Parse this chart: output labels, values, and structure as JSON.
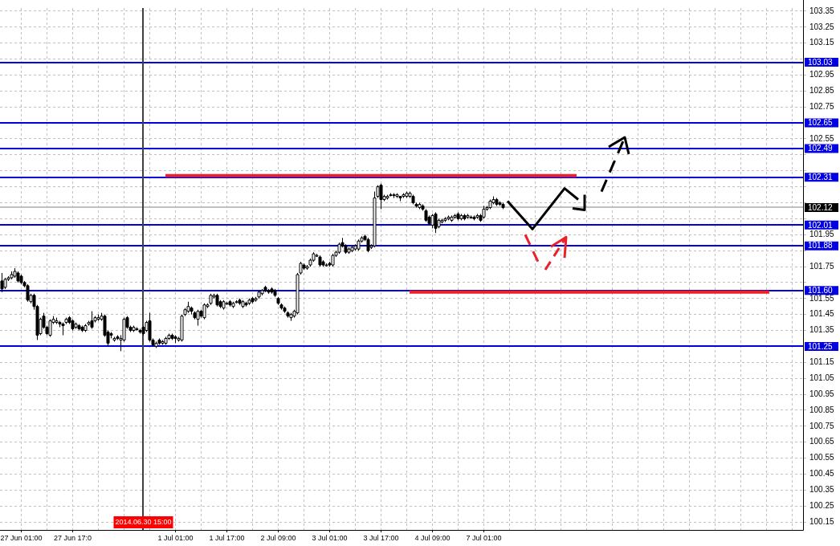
{
  "chart_data": {
    "type": "candlestick",
    "categories": [
      null,
      null,
      null,
      null,
      null,
      null,
      "27 Jun 01:00",
      null,
      null,
      null,
      null,
      null,
      null,
      null,
      null,
      null,
      null,
      null,
      null,
      null,
      null,
      null,
      "27 Jun 17:0",
      null,
      null,
      null,
      null,
      null,
      null,
      null,
      null,
      null,
      null,
      null,
      null,
      null,
      null,
      null,
      null,
      null,
      null,
      null,
      null,
      null,
      "2014.06.30 15:00",
      null,
      null,
      null,
      null,
      null,
      null,
      null,
      null,
      null,
      "1 Jul 01:00",
      null,
      null,
      null,
      null,
      null,
      null,
      null,
      null,
      null,
      null,
      null,
      null,
      null,
      null,
      null,
      "1 Jul 17:00",
      null,
      null,
      null,
      null,
      null,
      null,
      null,
      null,
      null,
      null,
      null,
      null,
      null,
      null,
      null,
      "2 Jul 09:00",
      null,
      null,
      null,
      null,
      null,
      null,
      null,
      null,
      null,
      null,
      null,
      null,
      null,
      null,
      null,
      "3 Jul 01:00",
      null,
      null,
      null,
      null,
      null,
      null,
      null,
      null,
      null,
      null,
      null,
      null,
      null,
      null,
      null,
      "3 Jul 17:00",
      null,
      null,
      null,
      null,
      null,
      null,
      null,
      null,
      null,
      null,
      null,
      null,
      null,
      null,
      null,
      "4 Jul 09:00",
      null,
      null,
      null,
      null,
      null,
      null,
      null,
      null,
      null,
      null,
      null,
      null,
      null,
      null,
      null,
      "7 Jul 01:00",
      null,
      null,
      null,
      null,
      null,
      null,
      null,
      null,
      null,
      null,
      null,
      null,
      null,
      null,
      null,
      null,
      null,
      null,
      null,
      null,
      null,
      null,
      null,
      null,
      null,
      null,
      null,
      null,
      null,
      null,
      null,
      null,
      null,
      null,
      null,
      null,
      null,
      null,
      null,
      null,
      null,
      null,
      null,
      null,
      null,
      null,
      null,
      null,
      null,
      null,
      null,
      null,
      null,
      null,
      null,
      null,
      null,
      null,
      null,
      null,
      null,
      null,
      null,
      null,
      null,
      null,
      null,
      null,
      null,
      null,
      null,
      null,
      null,
      null,
      null,
      null,
      null,
      null,
      null,
      null,
      null,
      null,
      null,
      null,
      null,
      null,
      null,
      null,
      null,
      null,
      null,
      null,
      null,
      null,
      null,
      null,
      null,
      null,
      null
    ],
    "ohlc": [
      [
        101.66,
        101.71,
        101.59,
        101.61
      ],
      [
        101.62,
        101.68,
        101.61,
        101.67
      ],
      [
        101.67,
        101.69,
        101.66,
        101.68
      ],
      [
        101.68,
        101.72,
        101.67,
        101.7
      ],
      [
        101.69,
        101.74,
        101.68,
        101.72
      ],
      [
        101.71,
        101.72,
        101.65,
        101.66
      ],
      [
        101.69,
        101.7,
        101.64,
        101.65
      ],
      [
        101.65,
        101.66,
        101.62,
        101.63
      ],
      [
        101.63,
        101.64,
        101.53,
        101.54
      ],
      [
        101.53,
        101.58,
        101.52,
        101.57
      ],
      [
        101.57,
        101.58,
        101.48,
        101.5
      ],
      [
        101.5,
        101.51,
        101.29,
        101.32
      ],
      [
        101.33,
        101.43,
        101.32,
        101.42
      ],
      [
        101.44,
        101.46,
        101.36,
        101.37
      ],
      [
        101.37,
        101.38,
        101.32,
        101.33
      ],
      [
        101.32,
        101.42,
        101.31,
        101.41
      ],
      [
        101.4,
        101.44,
        101.39,
        101.42
      ],
      [
        101.4,
        101.43,
        101.39,
        101.41
      ],
      [
        101.4,
        101.41,
        101.37,
        101.39
      ],
      [
        101.39,
        101.4,
        101.32,
        101.38
      ],
      [
        101.4,
        101.43,
        101.39,
        101.42
      ],
      [
        101.43,
        101.44,
        101.39,
        101.4
      ],
      [
        101.41,
        101.42,
        101.35,
        101.36
      ],
      [
        101.37,
        101.4,
        101.36,
        101.39
      ],
      [
        101.38,
        101.39,
        101.35,
        101.36
      ],
      [
        101.37,
        101.38,
        101.34,
        101.35
      ],
      [
        101.35,
        101.39,
        101.34,
        101.38
      ],
      [
        101.39,
        101.41,
        101.38,
        101.4
      ],
      [
        101.41,
        101.47,
        101.36,
        101.37
      ],
      [
        101.41,
        101.44,
        101.4,
        101.43
      ],
      [
        101.42,
        101.45,
        101.41,
        101.43
      ],
      [
        101.42,
        101.46,
        101.41,
        101.44
      ],
      [
        101.44,
        101.45,
        101.31,
        101.32
      ],
      [
        101.34,
        101.35,
        101.25,
        101.27
      ],
      [
        101.33,
        101.34,
        101.3,
        101.32
      ],
      [
        101.29,
        101.31,
        101.28,
        101.3
      ],
      [
        101.31,
        101.32,
        101.29,
        101.3
      ],
      [
        101.29,
        101.32,
        101.22,
        101.3
      ],
      [
        101.29,
        101.43,
        101.28,
        101.42
      ],
      [
        101.43,
        101.44,
        101.36,
        101.37
      ],
      [
        101.37,
        101.38,
        101.34,
        101.35
      ],
      [
        101.35,
        101.38,
        101.34,
        101.37
      ],
      [
        101.36,
        101.37,
        101.35,
        101.36
      ],
      [
        101.35,
        101.36,
        101.33,
        101.34
      ],
      [
        101.37,
        101.38,
        101.32,
        101.33
      ],
      [
        101.35,
        101.41,
        101.34,
        101.4
      ],
      [
        101.41,
        101.46,
        101.28,
        101.29
      ],
      [
        101.29,
        101.3,
        101.25,
        101.26
      ],
      [
        101.25,
        101.28,
        101.24,
        101.27
      ],
      [
        101.29,
        101.3,
        101.26,
        101.27
      ],
      [
        101.27,
        101.29,
        101.26,
        101.28
      ],
      [
        101.27,
        101.31,
        101.26,
        101.3
      ],
      [
        101.3,
        101.33,
        101.29,
        101.32
      ],
      [
        101.32,
        101.33,
        101.29,
        101.3
      ],
      [
        101.31,
        101.32,
        101.27,
        101.3
      ],
      [
        101.29,
        101.31,
        101.28,
        101.3
      ],
      [
        101.29,
        101.45,
        101.28,
        101.44
      ],
      [
        101.45,
        101.49,
        101.44,
        101.48
      ],
      [
        101.47,
        101.53,
        101.46,
        101.5
      ],
      [
        101.49,
        101.5,
        101.45,
        101.47
      ],
      [
        101.46,
        101.47,
        101.42,
        101.43
      ],
      [
        101.42,
        101.48,
        101.38,
        101.47
      ],
      [
        101.47,
        101.48,
        101.43,
        101.44
      ],
      [
        101.43,
        101.52,
        101.42,
        101.51
      ],
      [
        101.5,
        101.52,
        101.49,
        101.51
      ],
      [
        101.52,
        101.58,
        101.51,
        101.57
      ],
      [
        101.56,
        101.58,
        101.55,
        101.57
      ],
      [
        101.57,
        101.58,
        101.5,
        101.51
      ],
      [
        101.53,
        101.54,
        101.49,
        101.5
      ],
      [
        101.49,
        101.54,
        101.48,
        101.53
      ],
      [
        101.52,
        101.53,
        101.51,
        101.52
      ],
      [
        101.53,
        101.54,
        101.5,
        101.51
      ],
      [
        101.5,
        101.53,
        101.49,
        101.52
      ],
      [
        101.53,
        101.54,
        101.52,
        101.53
      ],
      [
        101.54,
        101.55,
        101.51,
        101.52
      ],
      [
        101.5,
        101.54,
        101.49,
        101.53
      ],
      [
        101.52,
        101.53,
        101.5,
        101.51
      ],
      [
        101.52,
        101.55,
        101.51,
        101.54
      ],
      [
        101.55,
        101.56,
        101.52,
        101.53
      ],
      [
        101.54,
        101.56,
        101.53,
        101.55
      ],
      [
        101.56,
        101.6,
        101.55,
        101.59
      ],
      [
        101.58,
        101.61,
        101.57,
        101.6
      ],
      [
        101.62,
        101.63,
        101.59,
        101.6
      ],
      [
        101.6,
        101.61,
        101.58,
        101.59
      ],
      [
        101.61,
        101.62,
        101.58,
        101.59
      ],
      [
        101.6,
        101.61,
        101.56,
        101.57
      ],
      [
        101.55,
        101.56,
        101.51,
        101.52
      ],
      [
        101.51,
        101.52,
        101.48,
        101.49
      ],
      [
        101.49,
        101.5,
        101.46,
        101.47
      ],
      [
        101.46,
        101.47,
        101.43,
        101.44
      ],
      [
        101.43,
        101.46,
        101.41,
        101.45
      ],
      [
        101.44,
        101.48,
        101.43,
        101.47
      ],
      [
        101.46,
        101.71,
        101.45,
        101.7
      ],
      [
        101.71,
        101.78,
        101.7,
        101.77
      ],
      [
        101.76,
        101.77,
        101.73,
        101.74
      ],
      [
        101.74,
        101.76,
        101.73,
        101.75
      ],
      [
        101.76,
        101.8,
        101.75,
        101.79
      ],
      [
        101.79,
        101.84,
        101.78,
        101.83
      ],
      [
        101.82,
        101.83,
        101.81,
        101.82
      ],
      [
        101.81,
        101.82,
        101.75,
        101.76
      ],
      [
        101.78,
        101.79,
        101.75,
        101.76
      ],
      [
        101.76,
        101.77,
        101.75,
        101.76
      ],
      [
        101.77,
        101.78,
        101.75,
        101.76
      ],
      [
        101.76,
        101.83,
        101.75,
        101.82
      ],
      [
        101.82,
        101.85,
        101.81,
        101.84
      ],
      [
        101.84,
        101.9,
        101.83,
        101.89
      ],
      [
        101.9,
        101.93,
        101.87,
        101.88
      ],
      [
        101.88,
        101.89,
        101.83,
        101.84
      ],
      [
        101.84,
        101.87,
        101.83,
        101.86
      ],
      [
        101.85,
        101.88,
        101.84,
        101.87
      ],
      [
        101.86,
        101.89,
        101.85,
        101.88
      ],
      [
        101.86,
        101.92,
        101.85,
        101.91
      ],
      [
        101.91,
        101.94,
        101.9,
        101.93
      ],
      [
        101.94,
        101.95,
        101.91,
        101.92
      ],
      [
        101.92,
        101.93,
        101.84,
        101.85
      ],
      [
        101.87,
        101.89,
        101.86,
        101.88
      ],
      [
        101.88,
        102.22,
        101.87,
        102.18
      ],
      [
        102.19,
        102.26,
        102.18,
        102.25
      ],
      [
        102.26,
        102.27,
        102.11,
        102.17
      ],
      [
        102.17,
        102.2,
        102.16,
        102.19
      ],
      [
        102.18,
        102.2,
        102.17,
        102.19
      ],
      [
        102.2,
        102.21,
        102.19,
        102.2
      ],
      [
        102.2,
        102.21,
        102.18,
        102.2
      ],
      [
        102.19,
        102.21,
        102.18,
        102.2
      ],
      [
        102.19,
        102.19,
        102.16,
        102.18
      ],
      [
        102.19,
        102.21,
        102.18,
        102.2
      ],
      [
        102.19,
        102.22,
        102.18,
        102.21
      ],
      [
        102.19,
        102.22,
        102.18,
        102.21
      ],
      [
        102.19,
        102.2,
        102.14,
        102.15
      ],
      [
        102.14,
        102.15,
        102.12,
        102.13
      ],
      [
        102.12,
        102.15,
        102.11,
        102.14
      ],
      [
        102.13,
        102.14,
        102.1,
        102.11
      ],
      [
        102.1,
        102.11,
        102.03,
        102.04
      ],
      [
        102.06,
        102.07,
        102.01,
        102.02
      ],
      [
        102.01,
        102.08,
        101.99,
        102.07
      ],
      [
        102.08,
        102.09,
        101.96,
        101.99
      ],
      [
        102.0,
        102.05,
        101.99,
        102.04
      ],
      [
        102.03,
        102.05,
        102.02,
        102.04
      ],
      [
        102.04,
        102.06,
        102.03,
        102.05
      ],
      [
        102.05,
        102.07,
        102.04,
        102.06
      ],
      [
        102.04,
        102.07,
        102.03,
        102.06
      ],
      [
        102.06,
        102.08,
        102.05,
        102.07
      ],
      [
        102.08,
        102.09,
        102.04,
        102.05
      ],
      [
        102.05,
        102.08,
        102.04,
        102.07
      ],
      [
        102.07,
        102.08,
        102.04,
        102.05
      ],
      [
        102.06,
        102.08,
        102.05,
        102.07
      ],
      [
        102.06,
        102.07,
        102.05,
        102.06
      ],
      [
        102.06,
        102.07,
        102.04,
        102.05
      ],
      [
        102.06,
        102.08,
        102.05,
        102.07
      ],
      [
        102.07,
        102.08,
        102.03,
        102.04
      ],
      [
        102.06,
        102.13,
        102.05,
        102.11
      ],
      [
        102.11,
        102.13,
        102.1,
        102.12
      ],
      [
        102.12,
        102.17,
        102.11,
        102.16
      ],
      [
        102.15,
        102.19,
        102.14,
        102.17
      ],
      [
        102.17,
        102.18,
        102.13,
        102.14
      ],
      [
        102.15,
        102.16,
        102.13,
        102.14
      ],
      [
        102.14,
        102.15,
        102.11,
        102.12
      ],
      null,
      null,
      null,
      null,
      null,
      null,
      null,
      null,
      null,
      null,
      null,
      null,
      null,
      null,
      null,
      null,
      null,
      null,
      null,
      null,
      null,
      null,
      null,
      null,
      null,
      null,
      null,
      null,
      null,
      null,
      null,
      null,
      null,
      null,
      null,
      null,
      null,
      null,
      null,
      null,
      null,
      null,
      null,
      null,
      null,
      null,
      null,
      null,
      null,
      null,
      null,
      null,
      null,
      null,
      null,
      null,
      null,
      null,
      null,
      null,
      null,
      null,
      null,
      null,
      null,
      null,
      null,
      null,
      null,
      null,
      null,
      null,
      null,
      null,
      null,
      null,
      null,
      null,
      null,
      null,
      null,
      null,
      null,
      null,
      null,
      null,
      null,
      null,
      null,
      null,
      null,
      null,
      null
    ],
    "series": [
      {
        "type": "line",
        "color": "#e8212b",
        "values": [
          null,
          null,
          null,
          null,
          null,
          null,
          null,
          null,
          null,
          null,
          null,
          null,
          null,
          null,
          null,
          null,
          null,
          null,
          null,
          null,
          null,
          null,
          null,
          null,
          null,
          null,
          null,
          null,
          null,
          null,
          null,
          null,
          null,
          null,
          null,
          null,
          null,
          null,
          null,
          null,
          null,
          null,
          null,
          null,
          null,
          null,
          null,
          null,
          null,
          null,
          null,
          102.32,
          102.32,
          102.32,
          102.32,
          102.32,
          102.32,
          102.32,
          102.32,
          102.32,
          102.32,
          102.32,
          102.32,
          102.32,
          102.32,
          102.32,
          102.32,
          102.32,
          102.32,
          102.32,
          102.32,
          102.32,
          102.32,
          102.32,
          102.32,
          102.32,
          102.32,
          102.32,
          102.32,
          102.32,
          102.32,
          102.32,
          102.32,
          102.32,
          102.32,
          102.32,
          102.32,
          102.32,
          102.32,
          102.32,
          102.32,
          102.32,
          102.32,
          102.32,
          102.32,
          102.32,
          102.32,
          102.32,
          102.32,
          102.32,
          102.32,
          102.32,
          102.32,
          102.32,
          102.32,
          102.32,
          102.32,
          102.32,
          102.32,
          102.32,
          102.32,
          102.32,
          102.32,
          102.32,
          102.32,
          102.32,
          102.32,
          102.32,
          102.32,
          102.32,
          102.32,
          102.32,
          102.32,
          102.32,
          102.32,
          102.32,
          102.32,
          102.32,
          102.32,
          102.32,
          102.32,
          102.32,
          102.32,
          102.32,
          102.32,
          102.32,
          102.32,
          102.32,
          102.32,
          102.32,
          102.32,
          102.32,
          102.32,
          102.32,
          102.32,
          102.32,
          102.32,
          102.32,
          102.32,
          102.32,
          102.32,
          102.32,
          102.32,
          102.32,
          102.32,
          102.32,
          102.32,
          102.32,
          102.32,
          102.32,
          102.32,
          102.32,
          102.32,
          102.32,
          102.32,
          102.32,
          102.32,
          102.32,
          102.32,
          102.32,
          102.32,
          102.32,
          102.32,
          102.32,
          102.32,
          102.32,
          102.32,
          102.32,
          102.32,
          102.32,
          null,
          null,
          null,
          null,
          null,
          null,
          null,
          null,
          null,
          null,
          null,
          null,
          null,
          null,
          null,
          null,
          null,
          null,
          null,
          null,
          null,
          null,
          null,
          null,
          null,
          null,
          null,
          null,
          null,
          null,
          null,
          null,
          null,
          null,
          null,
          null,
          null,
          null,
          null,
          null,
          null,
          null,
          null,
          null,
          null,
          null,
          null,
          null,
          null,
          null,
          null,
          null,
          null,
          null,
          null,
          null,
          null,
          null,
          null,
          null,
          null,
          null,
          null,
          null,
          null,
          null,
          null,
          null,
          null,
          null
        ]
      },
      {
        "type": "line",
        "color": "#e8212b",
        "values": [
          null,
          null,
          null,
          null,
          null,
          null,
          null,
          null,
          null,
          null,
          null,
          null,
          null,
          null,
          null,
          null,
          null,
          null,
          null,
          null,
          null,
          null,
          null,
          null,
          null,
          null,
          null,
          null,
          null,
          null,
          null,
          null,
          null,
          null,
          null,
          null,
          null,
          null,
          null,
          null,
          null,
          null,
          null,
          null,
          null,
          null,
          null,
          null,
          null,
          null,
          null,
          null,
          null,
          null,
          null,
          null,
          null,
          null,
          null,
          null,
          null,
          null,
          null,
          null,
          null,
          null,
          null,
          null,
          null,
          null,
          null,
          null,
          null,
          null,
          null,
          null,
          null,
          null,
          null,
          null,
          null,
          null,
          null,
          null,
          null,
          null,
          null,
          null,
          null,
          null,
          null,
          null,
          null,
          null,
          null,
          null,
          null,
          null,
          null,
          null,
          null,
          null,
          null,
          null,
          null,
          null,
          null,
          null,
          null,
          null,
          null,
          null,
          null,
          null,
          null,
          null,
          null,
          null,
          null,
          null,
          null,
          null,
          null,
          null,
          null,
          null,
          null,
          101.59,
          101.59,
          101.59,
          101.59,
          101.59,
          101.59,
          101.59,
          101.59,
          101.59,
          101.59,
          101.59,
          101.59,
          101.59,
          101.59,
          101.59,
          101.59,
          101.59,
          101.59,
          101.59,
          101.59,
          101.59,
          101.59,
          101.59,
          101.59,
          101.59,
          101.59,
          101.59,
          101.59,
          101.59,
          101.59,
          101.59,
          101.59,
          101.59,
          101.59,
          101.59,
          101.59,
          101.59,
          101.59,
          101.59,
          101.59,
          101.59,
          101.59,
          101.59,
          101.59,
          101.59,
          101.59,
          101.59,
          101.59,
          101.59,
          101.59,
          101.59,
          101.59,
          101.59,
          101.59,
          101.59,
          101.59,
          101.59,
          101.59,
          101.59,
          101.59,
          101.59,
          101.59,
          101.59,
          101.59,
          101.59,
          101.59,
          101.59,
          101.59,
          101.59,
          101.59,
          101.59,
          101.59,
          101.59,
          101.59,
          101.59,
          101.59,
          101.59,
          101.59,
          101.59,
          101.59,
          101.59,
          101.59,
          101.59,
          101.59,
          101.59,
          101.59,
          101.59,
          101.59,
          101.59,
          101.59,
          101.59,
          101.59,
          101.59,
          101.59,
          101.59,
          101.59,
          101.59,
          101.59,
          101.59,
          101.59,
          101.59,
          101.59,
          101.59,
          101.59,
          101.59,
          101.59,
          101.59,
          101.59,
          101.59,
          101.59,
          101.59,
          101.59,
          101.59,
          null,
          null,
          null,
          null,
          null,
          null,
          null,
          null,
          null,
          null
        ]
      }
    ],
    "ylim": [
      100.1,
      103.37
    ],
    "yticks": [
      100.15,
      100.25,
      100.35,
      100.45,
      100.55,
      100.65,
      100.75,
      100.85,
      100.95,
      101.05,
      101.15,
      101.35,
      101.45,
      101.55,
      {
        "value": 101.65,
        "label": null
      },
      101.75,
      {
        "value": 101.85,
        "label": null
      },
      101.95,
      {
        "value": 102.05,
        "label": null
      },
      {
        "value": 102.15,
        "label": null
      },
      {
        "value": 102.25,
        "label": null
      },
      {
        "value": 102.35,
        "label": null
      },
      {
        "value": 102.45,
        "label": null
      },
      102.55,
      102.75,
      102.85,
      102.95,
      {
        "value": 103.05,
        "label": null
      },
      103.15,
      103.25,
      103.35
    ],
    "grid": true,
    "ref_lines": [
      {
        "axis": "y",
        "value": 103.03,
        "label": "103.03",
        "color": "#0000e0"
      },
      {
        "axis": "y",
        "value": 102.65,
        "label": "102.65",
        "color": "#0000e0"
      },
      {
        "axis": "y",
        "value": 102.49,
        "label": "102.49",
        "color": "#0000e0"
      },
      {
        "axis": "y",
        "value": 102.31,
        "label": "102.31",
        "color": "#0000e0"
      },
      {
        "axis": "y",
        "value": 102.12,
        "label": "102.12",
        "color": "#c0c0c0"
      },
      {
        "axis": "y",
        "value": 102.01,
        "label": "102.01",
        "color": "#0000e0"
      },
      {
        "axis": "y",
        "value": 101.88,
        "label": "101.88",
        "color": "#0000e0"
      },
      {
        "axis": "y",
        "value": 101.6,
        "label": "101.60",
        "color": "#0000e0"
      },
      {
        "axis": "y",
        "value": 101.25,
        "label": "101.25",
        "color": "#0000e0"
      },
      {
        "axis": "x",
        "value": "2014.06.30 15:00",
        "color": "#404040"
      }
    ]
  }
}
